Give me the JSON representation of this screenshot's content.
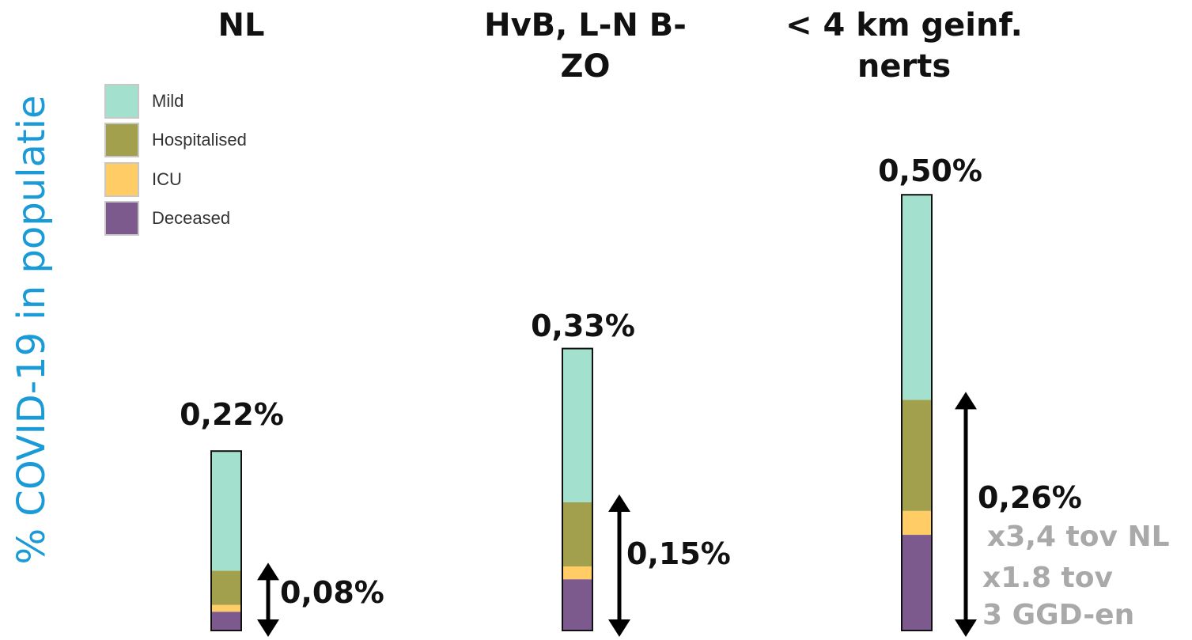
{
  "chart_data": {
    "type": "stacked-bar",
    "ylabel": "% COVID-19 in populatie",
    "categories": [
      "NL",
      "HvB,  L-N B-ZO",
      "< 4 km geinf. nerts"
    ],
    "category_title_lines": [
      [
        "NL"
      ],
      [
        "HvB,  L-N B-",
        "ZO"
      ],
      [
        "< 4 km geinf.",
        "nerts"
      ]
    ],
    "series": [
      {
        "name": "Mild",
        "color": "#a3e0cd",
        "values": [
          0.14,
          0.18,
          0.24
        ]
      },
      {
        "name": "Hospitalised",
        "color": "#a2a04c",
        "values": [
          0.04,
          0.075,
          0.13
        ]
      },
      {
        "name": "ICU",
        "color": "#ffcc66",
        "values": [
          0.008,
          0.015,
          0.028
        ]
      },
      {
        "name": "Deceased",
        "color": "#7c5a8e",
        "values": [
          0.022,
          0.06,
          0.112
        ]
      }
    ],
    "totals": [
      "0,22%",
      "0,33%",
      "0,50%"
    ],
    "annotations": [
      "0,08%",
      "0,15%",
      "0,26%"
    ],
    "notes": [
      "x3,4 tov NL",
      "x1.8 tov",
      "3 GGD-en"
    ],
    "ylim": [
      0,
      0.5
    ],
    "grid": false,
    "legend": "top-left"
  }
}
